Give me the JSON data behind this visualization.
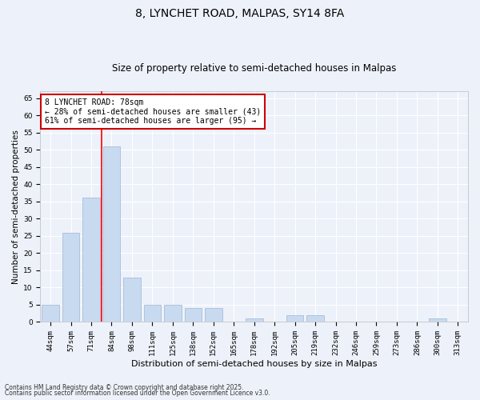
{
  "title1": "8, LYNCHET ROAD, MALPAS, SY14 8FA",
  "title2": "Size of property relative to semi-detached houses in Malpas",
  "xlabel": "Distribution of semi-detached houses by size in Malpas",
  "ylabel": "Number of semi-detached properties",
  "categories": [
    "44sqm",
    "57sqm",
    "71sqm",
    "84sqm",
    "98sqm",
    "111sqm",
    "125sqm",
    "138sqm",
    "152sqm",
    "165sqm",
    "178sqm",
    "192sqm",
    "205sqm",
    "219sqm",
    "232sqm",
    "246sqm",
    "259sqm",
    "273sqm",
    "286sqm",
    "300sqm",
    "313sqm"
  ],
  "values": [
    5,
    26,
    36,
    51,
    13,
    5,
    5,
    4,
    4,
    0,
    1,
    0,
    2,
    2,
    0,
    0,
    0,
    0,
    0,
    1,
    0
  ],
  "bar_color": "#c8daf0",
  "bar_edgecolor": "#aabdd8",
  "redline_x": 2.5,
  "ylim": [
    0,
    67
  ],
  "yticks": [
    0,
    5,
    10,
    15,
    20,
    25,
    30,
    35,
    40,
    45,
    50,
    55,
    60,
    65
  ],
  "annotation_text": "8 LYNCHET ROAD: 78sqm\n← 28% of semi-detached houses are smaller (43)\n61% of semi-detached houses are larger (95) →",
  "annotation_box_facecolor": "#ffffff",
  "annotation_box_edgecolor": "#cc0000",
  "footnote1": "Contains HM Land Registry data © Crown copyright and database right 2025.",
  "footnote2": "Contains public sector information licensed under the Open Government Licence v3.0.",
  "bg_color": "#edf2fa",
  "grid_color": "#ffffff",
  "title1_fontsize": 10,
  "title2_fontsize": 8.5,
  "xlabel_fontsize": 8,
  "ylabel_fontsize": 7.5,
  "tick_fontsize": 6.5,
  "annot_fontsize": 7
}
